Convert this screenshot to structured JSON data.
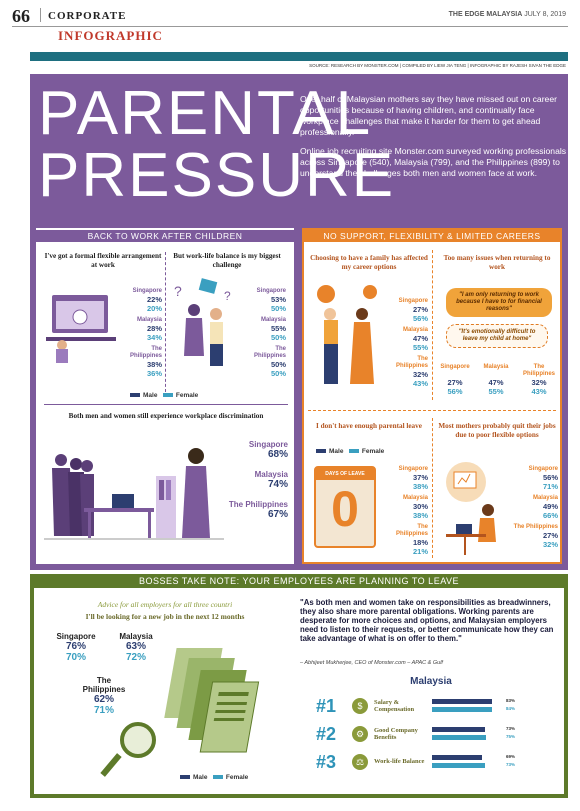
{
  "header": {
    "page_number": "66",
    "section": "CORPORATE",
    "masthead": "THE EDGE MALAYSIA",
    "date": "JULY 8, 2019",
    "category": "INFOGRAPHIC",
    "credits": "SOURCE: RESEARCH BY MONSTER.COM | COMPILED BY LIEW JIA TENG | INFOGRAPHIC BY RAJESH SIVAN THE EDGE"
  },
  "title": {
    "line1": "PARENTAL",
    "line2": "PRESSURE"
  },
  "intro": {
    "p1": "Over half of Malaysian mothers say they have missed out on career opportunities because of having children, and continually face workplace challenges that make it harder for them to get ahead professionally.",
    "p2": "Online job recruiting site Monster.com surveyed working professionals across Singapore (540), Malaysia (799), and the Philippines (899) to understand the challenges both men and women face at work."
  },
  "colors": {
    "purple": "#7c5a9b",
    "orange": "#e8832a",
    "green": "#5d7a2a",
    "male": "#2c3e70",
    "female": "#3a9fc0"
  },
  "back_to_work": {
    "heading": "BACK TO WORK AFTER CHILDREN",
    "q1": "I've got a formal flexible arrangement at work",
    "q2": "But work-life balance is my biggest challenge",
    "q1_stats": [
      {
        "country": "Singapore",
        "male": "22%",
        "female": "20%"
      },
      {
        "country": "Malaysia",
        "male": "28%",
        "female": "34%"
      },
      {
        "country": "The Philippines",
        "male": "38%",
        "female": "36%"
      }
    ],
    "q2_stats": [
      {
        "country": "Singapore",
        "male": "53%",
        "female": "50%"
      },
      {
        "country": "Malaysia",
        "male": "55%",
        "female": "50%"
      },
      {
        "country": "The Philippines",
        "male": "50%",
        "female": "50%"
      }
    ],
    "legend_male": "Male",
    "legend_female": "Female",
    "q3": "Both men and women still experience workplace discrimination",
    "q3_stats": [
      {
        "country": "Singapore",
        "value": "68%"
      },
      {
        "country": "Malaysia",
        "value": "74%"
      },
      {
        "country": "The Philippines",
        "value": "67%"
      }
    ]
  },
  "no_support": {
    "heading": "NO SUPPORT, FLEXIBILITY & LIMITED CAREERS",
    "q1": "Choosing to have a family has affected my career options",
    "q1_stats": [
      {
        "country": "Singapore",
        "male": "27%",
        "female": "56%"
      },
      {
        "country": "Malaysia",
        "male": "47%",
        "female": "55%"
      },
      {
        "country": "The Philippines",
        "male": "32%",
        "female": "43%"
      }
    ],
    "q2": "Too many issues when returning to work",
    "bubble1": "\"I am only returning to work because I have to for financial reasons\"",
    "bubble2": "\"It's emotionally difficult to leave my child at home\"",
    "q2_stats": [
      {
        "country": "Singapore",
        "male": "27%",
        "female": "56%"
      },
      {
        "country": "Malaysia",
        "male": "47%",
        "female": "55%"
      },
      {
        "country": "The Philippines",
        "male": "32%",
        "female": "43%"
      }
    ],
    "q3": "I don't have enough parental leave",
    "days_label": "DAYS OF LEAVE",
    "days_value": "0",
    "q3_stats": [
      {
        "country": "Singapore",
        "male": "37%",
        "female": "38%"
      },
      {
        "country": "Malaysia",
        "male": "30%",
        "female": "38%"
      },
      {
        "country": "The Philippines",
        "male": "18%",
        "female": "21%"
      }
    ],
    "q4": "Most mothers probably quit their jobs due to poor flexible options",
    "q4_stats": [
      {
        "country": "Singapore",
        "male": "56%",
        "female": "71%"
      },
      {
        "country": "Malaysia",
        "male": "49%",
        "female": "66%"
      },
      {
        "country": "The Philippines",
        "male": "27%",
        "female": "32%"
      }
    ],
    "legend_male": "Male",
    "legend_female": "Female"
  },
  "bosses": {
    "heading": "BOSSES TAKE NOTE: YOUR EMPLOYEES ARE PLANNING TO LEAVE",
    "advice": "Advice for all employers for all three countri",
    "q": "I'll be looking for a new job in the next 12 months",
    "stats": [
      {
        "country": "Singapore",
        "male": "76%",
        "female": "70%"
      },
      {
        "country": "Malaysia",
        "male": "63%",
        "female": "72%"
      },
      {
        "country": "The Philippines",
        "male": "62%",
        "female": "71%"
      }
    ],
    "quote": "\"As both men and women take on responsibilities as breadwinners, they also share more parental obligations. Working parents are desperate for more choices and options, and Malaysian employers need to listen to their requests, or better communicate how they can take advantage of what is on offer to them.\"",
    "quote_src": "– Abhijeet Mukherjee, CEO of Monster.com – APAC & Gulf",
    "ranking_title": "Malaysia",
    "ranking": [
      {
        "rank": "#1",
        "label": "Salary & Compensation",
        "male": 83,
        "female": 84,
        "male_label": "83%",
        "female_label": "84%"
      },
      {
        "rank": "#2",
        "label": "Good Company Benefits",
        "male": 73,
        "female": 75,
        "male_label": "73%",
        "female_label": "75%"
      },
      {
        "rank": "#3",
        "label": "Work-life Balance",
        "male": 69,
        "female": 73,
        "male_label": "69%",
        "female_label": "73%"
      }
    ],
    "legend_male": "Male",
    "legend_female": "Female"
  }
}
